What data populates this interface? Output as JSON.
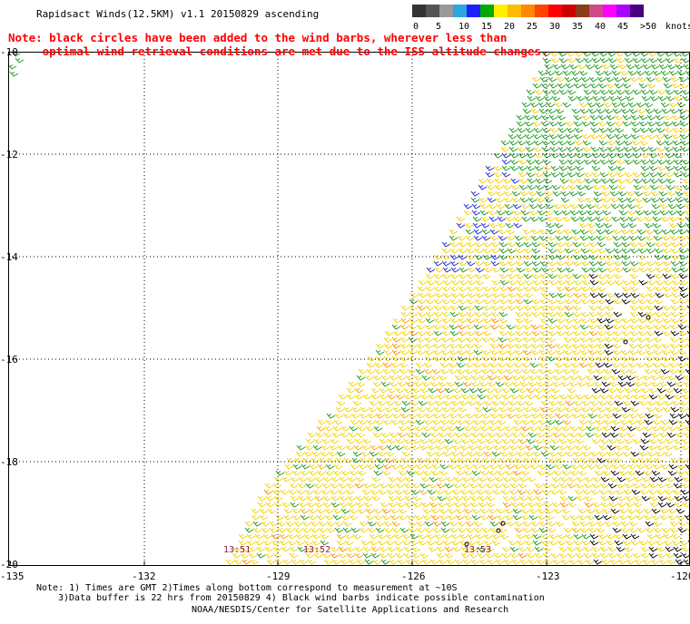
{
  "title": "Rapidsact Winds(12.5KM) v1.1 20150829 ascending",
  "note": {
    "line1": "Note: black circles have been added to the wind barbs, wherever less than",
    "line2": "     optimal wind retrieval conditions are met due to the ISS altitude changes."
  },
  "legend": {
    "unit": "knots",
    "labels": [
      "0",
      "5",
      "10",
      "15",
      "20",
      "25",
      "30",
      "35",
      "40",
      "45",
      ">50"
    ],
    "colors": [
      "#333333",
      "#555555",
      "#999999",
      "#2aa6e0",
      "#2020ff",
      "#00aa00",
      "#ffee00",
      "#ffbb00",
      "#ff8800",
      "#ff4400",
      "#ff0000",
      "#cc0000",
      "#8b3a1a",
      "#d04a8a",
      "#ff00ff",
      "#aa00ff",
      "#4a0080"
    ]
  },
  "axes": {
    "y_labels": [
      "-10",
      "-12",
      "-14",
      "-16",
      "-18",
      "-20"
    ],
    "x_labels": [
      "-135",
      "-132",
      "-129",
      "-126",
      "-123",
      "-120"
    ]
  },
  "times": [
    "13:51",
    "13:52",
    "13:53"
  ],
  "footer": {
    "line1": "Note: 1) Times are GMT 2)Times along bottom correspond to measurement at ~10S",
    "line2": "3)Data buffer is 22 hrs from 20150829 4) Black wind barbs indicate possible contamination",
    "line3": "NOAA/NESDIS/Center for Satellite Applications and Research"
  }
}
